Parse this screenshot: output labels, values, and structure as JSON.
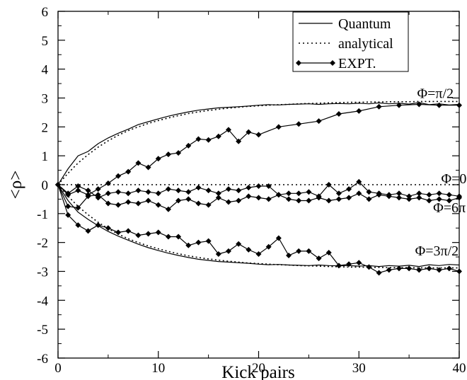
{
  "chart_data": {
    "type": "line",
    "xlabel": "Kick pairs",
    "ylabel": "<ρ>",
    "xlim": [
      0,
      40
    ],
    "ylim": [
      -6,
      6
    ],
    "x_ticks": [
      "0",
      "10",
      "20",
      "30",
      "40"
    ],
    "y_ticks": [
      "-6",
      "-5",
      "-4",
      "-3",
      "-2",
      "-1",
      "0",
      "1",
      "2",
      "3",
      "4",
      "5",
      "6"
    ],
    "grid": false,
    "legend": {
      "placement": "top-right",
      "entries": [
        {
          "label": "Quantum",
          "style": "solid"
        },
        {
          "label": "analytical",
          "style": "dotted"
        },
        {
          "label": "EXPT.",
          "style": "solid-diamond"
        }
      ]
    },
    "annotations": [
      {
        "text": "Φ=π/2",
        "x": 35.8,
        "y": 3.0
      },
      {
        "text": "Φ=0",
        "x": 38.2,
        "y": 0.05
      },
      {
        "text": "Φ=6π",
        "x": 37.4,
        "y": -0.95
      },
      {
        "text": "Φ=3π/2",
        "x": 35.6,
        "y": -2.45
      }
    ],
    "series": [
      {
        "name": "Quantum",
        "phase": "Φ=π/2",
        "style": "solid",
        "x": [
          0,
          1,
          2,
          3,
          4,
          5,
          6,
          7,
          8,
          9,
          10,
          11,
          12,
          13,
          14,
          15,
          16,
          17,
          18,
          19,
          20,
          21,
          22,
          23,
          24,
          25,
          26,
          27,
          28,
          29,
          30,
          31,
          32,
          33,
          34,
          35,
          36,
          37,
          38,
          39,
          40
        ],
        "y": [
          0,
          0.55,
          1.0,
          1.15,
          1.42,
          1.62,
          1.78,
          1.92,
          2.08,
          2.18,
          2.28,
          2.37,
          2.45,
          2.52,
          2.58,
          2.62,
          2.66,
          2.68,
          2.7,
          2.72,
          2.75,
          2.77,
          2.76,
          2.78,
          2.79,
          2.8,
          2.78,
          2.8,
          2.81,
          2.8,
          2.82,
          2.8,
          2.83,
          2.8,
          2.82,
          2.79,
          2.84,
          2.77,
          2.8,
          2.76,
          2.78
        ]
      },
      {
        "name": "analytical",
        "phase": "Φ=π/2",
        "style": "dotted",
        "x": [
          0,
          1,
          2,
          3,
          4,
          5,
          6,
          7,
          8,
          9,
          10,
          11,
          12,
          13,
          14,
          15,
          16,
          17,
          18,
          19,
          20,
          21,
          22,
          23,
          24,
          25,
          26,
          27,
          28,
          29,
          30,
          31,
          32,
          33,
          34,
          35,
          36,
          37,
          38,
          39,
          40
        ],
        "y": [
          0,
          0.4,
          0.75,
          1.04,
          1.3,
          1.52,
          1.71,
          1.87,
          2.0,
          2.12,
          2.22,
          2.31,
          2.39,
          2.46,
          2.52,
          2.57,
          2.61,
          2.65,
          2.68,
          2.71,
          2.73,
          2.75,
          2.77,
          2.78,
          2.8,
          2.81,
          2.82,
          2.83,
          2.84,
          2.85,
          2.85,
          2.86,
          2.86,
          2.87,
          2.87,
          2.87,
          2.88,
          2.88,
          2.88,
          2.88,
          2.88
        ]
      },
      {
        "name": "EXPT.",
        "phase": "Φ=π/2",
        "style": "solid-diamond",
        "x": [
          0,
          1,
          2,
          3,
          4,
          5,
          6,
          7,
          8,
          9,
          10,
          11,
          12,
          13,
          14,
          15,
          16,
          17,
          18,
          19,
          20,
          22,
          24,
          26,
          28,
          30,
          32,
          34,
          36,
          38,
          40
        ],
        "y": [
          0,
          -0.35,
          -0.2,
          -0.35,
          -0.15,
          0.05,
          0.3,
          0.45,
          0.75,
          0.6,
          0.9,
          1.05,
          1.1,
          1.35,
          1.58,
          1.55,
          1.67,
          1.9,
          1.5,
          1.82,
          1.73,
          2.0,
          2.1,
          2.2,
          2.45,
          2.55,
          2.7,
          2.75,
          2.78,
          2.75,
          2.75
        ]
      },
      {
        "name": "EXPT.",
        "phase": "Φ=0",
        "style": "solid-diamond",
        "x": [
          0,
          1,
          2,
          3,
          4,
          5,
          6,
          7,
          8,
          9,
          10,
          11,
          12,
          13,
          14,
          15,
          16,
          17,
          18,
          19,
          20,
          21,
          22,
          23,
          24,
          25,
          26,
          27,
          28,
          29,
          30,
          31,
          32,
          33,
          34,
          35,
          36,
          37,
          38,
          39,
          40
        ],
        "y": [
          0,
          -0.3,
          -0.05,
          -0.2,
          -0.45,
          -0.3,
          -0.25,
          -0.3,
          -0.2,
          -0.25,
          -0.3,
          -0.15,
          -0.2,
          -0.25,
          -0.1,
          -0.2,
          -0.3,
          -0.15,
          -0.2,
          -0.1,
          -0.05,
          -0.05,
          -0.35,
          -0.3,
          -0.3,
          -0.25,
          -0.4,
          0.0,
          -0.3,
          -0.15,
          0.1,
          -0.25,
          -0.3,
          -0.35,
          -0.3,
          -0.4,
          -0.3,
          -0.35,
          -0.3,
          -0.35,
          -0.4
        ]
      },
      {
        "name": "EXPT.",
        "phase": "Φ=6π",
        "style": "solid-diamond",
        "x": [
          0,
          1,
          2,
          3,
          4,
          5,
          6,
          7,
          8,
          9,
          10,
          11,
          12,
          13,
          14,
          15,
          16,
          17,
          18,
          19,
          20,
          21,
          22,
          23,
          24,
          25,
          26,
          27,
          28,
          29,
          30,
          31,
          32,
          33,
          34,
          35,
          36,
          37,
          38,
          39,
          40
        ],
        "y": [
          0,
          -0.75,
          -0.8,
          -0.4,
          -0.35,
          -0.65,
          -0.7,
          -0.6,
          -0.65,
          -0.55,
          -0.7,
          -0.85,
          -0.55,
          -0.5,
          -0.65,
          -0.7,
          -0.45,
          -0.6,
          -0.55,
          -0.4,
          -0.45,
          -0.5,
          -0.35,
          -0.5,
          -0.55,
          -0.55,
          -0.45,
          -0.55,
          -0.5,
          -0.45,
          -0.3,
          -0.5,
          -0.35,
          -0.4,
          -0.45,
          -0.5,
          -0.45,
          -0.55,
          -0.5,
          -0.55,
          -0.45
        ]
      },
      {
        "name": "Quantum",
        "phase": "Φ=3π/2",
        "style": "solid",
        "x": [
          0,
          1,
          2,
          3,
          4,
          5,
          6,
          7,
          8,
          9,
          10,
          11,
          12,
          13,
          14,
          15,
          16,
          17,
          18,
          19,
          20,
          21,
          22,
          23,
          24,
          25,
          26,
          27,
          28,
          29,
          30,
          31,
          32,
          33,
          34,
          35,
          36,
          37,
          38,
          39,
          40
        ],
        "y": [
          0,
          -0.55,
          -0.95,
          -1.2,
          -1.42,
          -1.62,
          -1.78,
          -1.92,
          -2.06,
          -2.18,
          -2.28,
          -2.37,
          -2.45,
          -2.52,
          -2.58,
          -2.62,
          -2.66,
          -2.68,
          -2.7,
          -2.72,
          -2.75,
          -2.77,
          -2.76,
          -2.78,
          -2.79,
          -2.8,
          -2.78,
          -2.8,
          -2.81,
          -2.8,
          -2.82,
          -2.8,
          -2.83,
          -2.8,
          -2.82,
          -2.79,
          -2.83,
          -2.77,
          -2.8,
          -2.76,
          -2.78
        ]
      },
      {
        "name": "analytical",
        "phase": "Φ=3π/2",
        "style": "dotted",
        "x": [
          0,
          1,
          2,
          3,
          4,
          5,
          6,
          7,
          8,
          9,
          10,
          11,
          12,
          13,
          14,
          15,
          16,
          17,
          18,
          19,
          20,
          21,
          22,
          23,
          24,
          25,
          26,
          27,
          28,
          29,
          30,
          31,
          32,
          33,
          34,
          35,
          36,
          37,
          38,
          39,
          40
        ],
        "y": [
          0,
          -0.4,
          -0.75,
          -1.04,
          -1.3,
          -1.52,
          -1.71,
          -1.87,
          -2.0,
          -2.12,
          -2.22,
          -2.31,
          -2.39,
          -2.46,
          -2.52,
          -2.57,
          -2.61,
          -2.65,
          -2.68,
          -2.71,
          -2.73,
          -2.75,
          -2.77,
          -2.78,
          -2.8,
          -2.81,
          -2.82,
          -2.83,
          -2.84,
          -2.85,
          -2.85,
          -2.86,
          -2.86,
          -2.87,
          -2.87,
          -2.87,
          -2.88,
          -2.88,
          -2.88,
          -2.88,
          -2.88
        ]
      },
      {
        "name": "EXPT.",
        "phase": "Φ=3π/2",
        "style": "solid-diamond",
        "x": [
          0,
          1,
          2,
          3,
          4,
          5,
          6,
          7,
          8,
          9,
          10,
          11,
          12,
          13,
          14,
          15,
          16,
          17,
          18,
          19,
          20,
          21,
          22,
          23,
          24,
          25,
          26,
          27,
          28,
          29,
          30,
          31,
          32,
          33,
          34,
          35,
          36,
          37,
          38,
          39,
          40
        ],
        "y": [
          0,
          -1.05,
          -1.4,
          -1.6,
          -1.4,
          -1.5,
          -1.65,
          -1.6,
          -1.75,
          -1.7,
          -1.65,
          -1.8,
          -1.8,
          -2.1,
          -2.0,
          -1.95,
          -2.4,
          -2.3,
          -2.05,
          -2.25,
          -2.4,
          -2.15,
          -1.85,
          -2.45,
          -2.3,
          -2.3,
          -2.55,
          -2.35,
          -2.8,
          -2.75,
          -2.7,
          -2.85,
          -3.05,
          -2.95,
          -2.9,
          -2.9,
          -2.95,
          -2.9,
          -2.95,
          -2.9,
          -3.0
        ]
      }
    ]
  }
}
